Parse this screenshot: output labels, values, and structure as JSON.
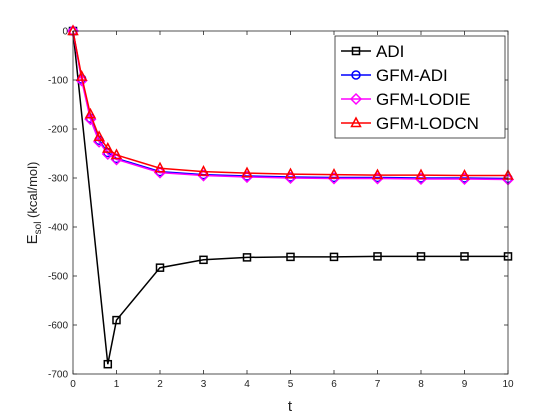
{
  "chart_data": {
    "type": "line",
    "title": "",
    "xlabel": "t",
    "ylabel_main": "E",
    "ylabel_sub": "sol",
    "ylabel_rest": " (kcal/mol)",
    "xlim": [
      0,
      10
    ],
    "ylim": [
      -700,
      0
    ],
    "xticks": [
      0,
      1,
      2,
      3,
      4,
      5,
      6,
      7,
      8,
      9,
      10
    ],
    "yticks": [
      0,
      -100,
      -200,
      -300,
      -400,
      -500,
      -600,
      -700
    ],
    "grid": false,
    "legend_position": "top-right",
    "x": [
      0,
      0.2,
      0.4,
      0.6,
      0.8,
      1,
      2,
      3,
      4,
      5,
      6,
      7,
      8,
      9,
      10
    ],
    "series": [
      {
        "name": "ADI",
        "color": "#000000",
        "marker": "square",
        "x": [
          0,
          0.8,
          1,
          2,
          3,
          4,
          5,
          6,
          7,
          8,
          9,
          10
        ],
        "values": [
          0,
          -680,
          -590,
          -483,
          -467,
          -462,
          -461,
          -461,
          -460,
          -460,
          -460,
          -460
        ]
      },
      {
        "name": "GFM-ADI",
        "color": "#0000ff",
        "marker": "circle",
        "values": [
          0,
          -98,
          -178,
          -223,
          -248,
          -260,
          -287,
          -293,
          -296,
          -298,
          -299,
          -299,
          -300,
          -300,
          -301
        ]
      },
      {
        "name": "GFM-LODIE",
        "color": "#ff00ff",
        "marker": "diamond",
        "values": [
          0,
          -101,
          -180,
          -226,
          -251,
          -262,
          -289,
          -295,
          -298,
          -300,
          -301,
          -301,
          -302,
          -302,
          -303
        ]
      },
      {
        "name": "GFM-LODCN",
        "color": "#ff0000",
        "marker": "triangle",
        "values": [
          0,
          -93,
          -170,
          -216,
          -240,
          -253,
          -280,
          -287,
          -290,
          -292,
          -293,
          -294,
          -294,
          -295,
          -295
        ]
      }
    ]
  }
}
